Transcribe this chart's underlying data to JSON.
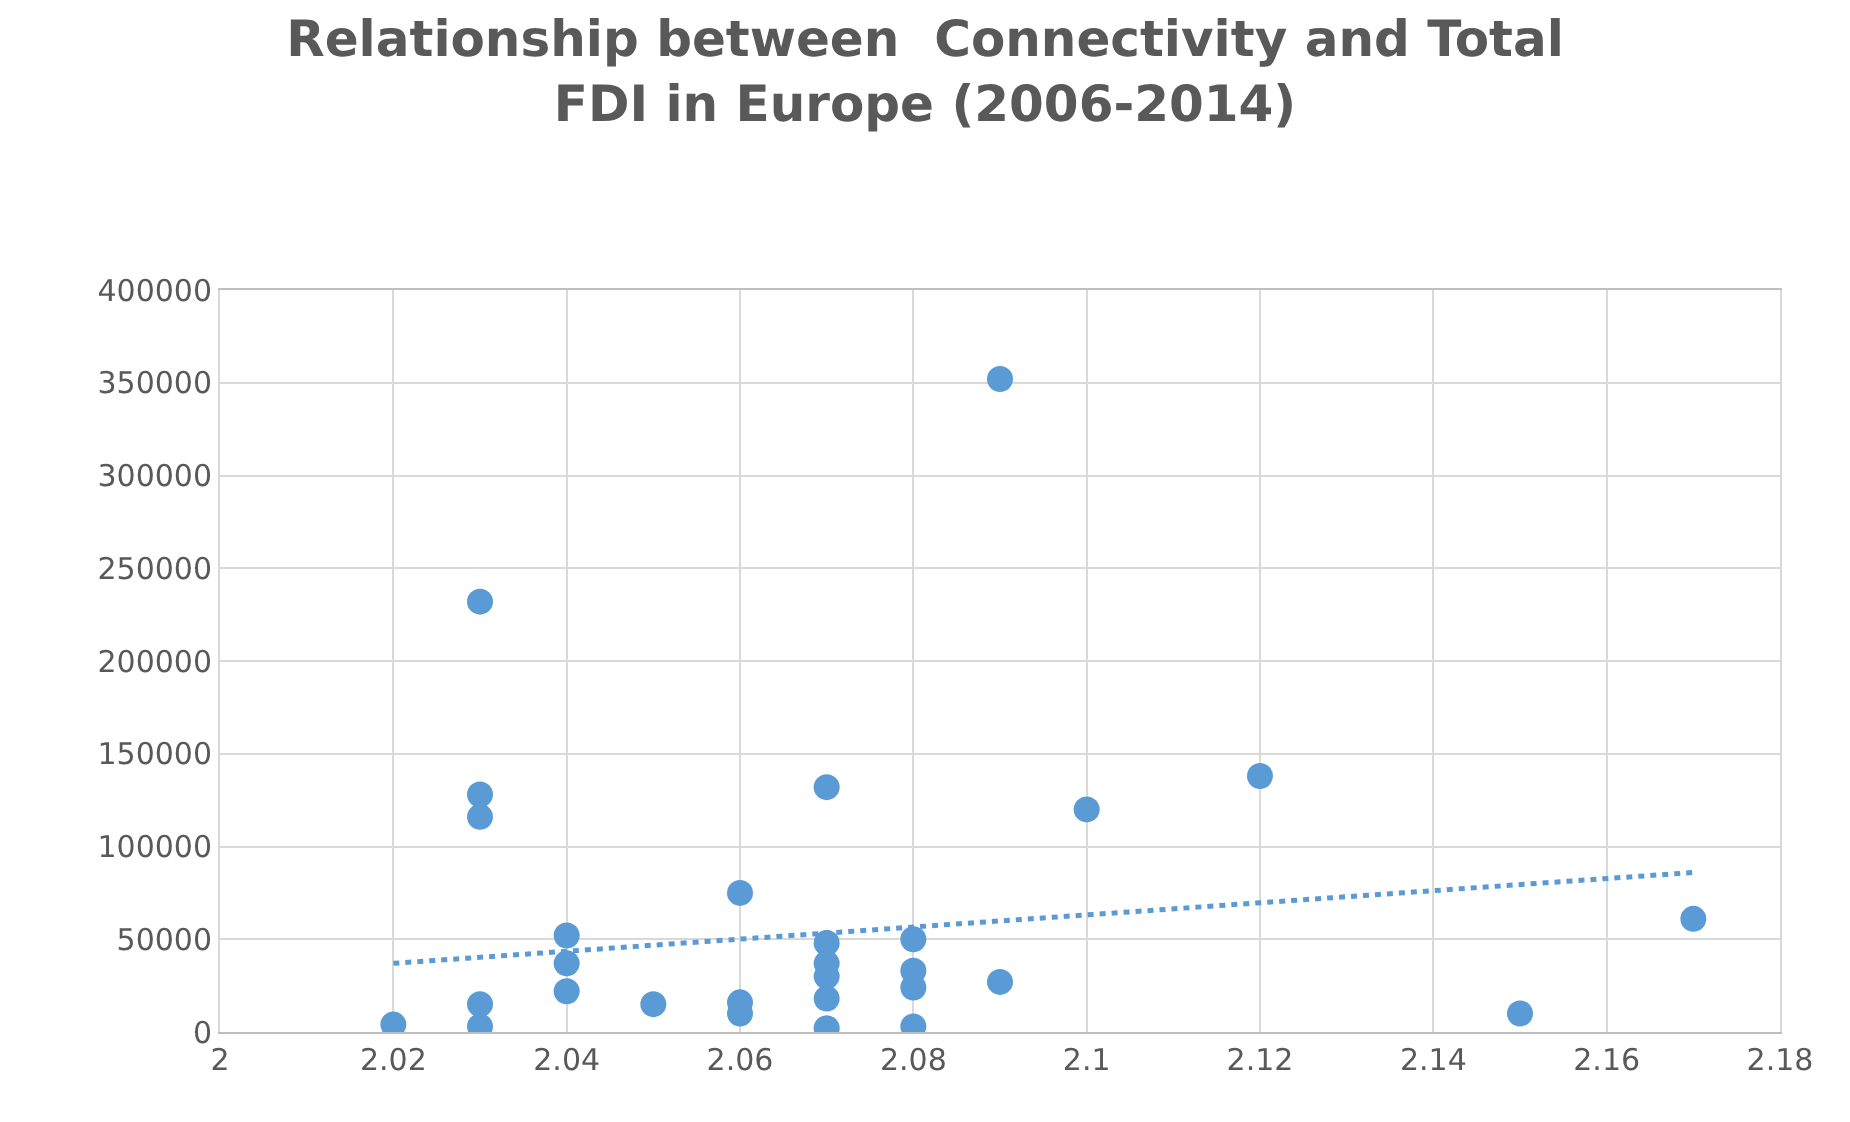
{
  "chart_data": {
    "type": "scatter",
    "title": "Relationship between  Connectivity and Total\nFDI in Europe (2006-2014)",
    "marker": "circle",
    "grid": true,
    "xlim": [
      2,
      2.18
    ],
    "xticks": [
      2,
      2.02,
      2.04,
      2.06,
      2.08,
      2.1,
      2.12,
      2.14,
      2.16,
      2.18
    ],
    "ylim": [
      0,
      400000
    ],
    "yticks": [
      0,
      50000,
      100000,
      150000,
      200000,
      250000,
      300000,
      350000,
      400000
    ],
    "series": [
      {
        "color": "#5b9bd5",
        "x": [
          2.02,
          2.03,
          2.03,
          2.03,
          2.03,
          2.03,
          2.04,
          2.04,
          2.04,
          2.05,
          2.06,
          2.06,
          2.06,
          2.07,
          2.07,
          2.07,
          2.07,
          2.07,
          2.07,
          2.08,
          2.08,
          2.08,
          2.08,
          2.09,
          2.09,
          2.1,
          2.12,
          2.15,
          2.17
        ],
        "values": [
          4000,
          232000,
          128000,
          116000,
          15000,
          3000,
          52000,
          37000,
          22000,
          15000,
          75000,
          16000,
          10000,
          132000,
          48000,
          37000,
          30000,
          18000,
          2000,
          50000,
          33000,
          24000,
          3000,
          352000,
          27000,
          120000,
          138000,
          10000,
          61000
        ]
      },
      {
        "type": "line",
        "color": "#5b9bd5",
        "line_style": "dotted",
        "marker": "none",
        "x": [
          2.02,
          2.17
        ],
        "values": [
          37000,
          86000
        ]
      }
    ]
  }
}
